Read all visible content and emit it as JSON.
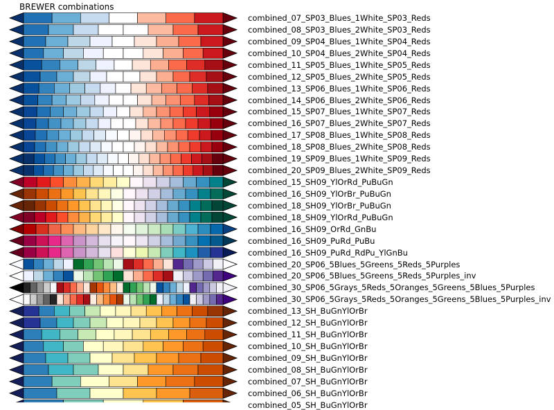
{
  "title": "BREWER combinations",
  "colorbars": [
    {
      "name": "combined_07_SP03_Blues_1White_SP03_Reds",
      "under": "#08306b",
      "over": "#67000d",
      "colors": [
        "#2171b5",
        "#6baed6",
        "#c6dbef",
        "#ffffff",
        "#fcbba1",
        "#fb6a4a",
        "#cb181d"
      ]
    },
    {
      "name": "combined_08_SP03_Blues_2White_SP03_Reds",
      "under": "#08306b",
      "over": "#67000d",
      "colors": [
        "#2171b5",
        "#6baed6",
        "#c6dbef",
        "#ffffff",
        "#ffffff",
        "#fcbba1",
        "#fb6a4a",
        "#cb181d"
      ]
    },
    {
      "name": "combined_09_SP04_Blues_1White_SP04_Reds",
      "under": "#08306b",
      "over": "#67000d",
      "colors": [
        "#2171b5",
        "#6baed6",
        "#bdd7e7",
        "#eff3ff",
        "#ffffff",
        "#fee5d9",
        "#fcae91",
        "#fb6a4a",
        "#cb181d"
      ]
    },
    {
      "name": "combined_10_SP04_Blues_2White_SP04_Reds",
      "under": "#08306b",
      "over": "#67000d",
      "colors": [
        "#2171b5",
        "#6baed6",
        "#bdd7e7",
        "#eff3ff",
        "#ffffff",
        "#ffffff",
        "#fee5d9",
        "#fcae91",
        "#fb6a4a",
        "#cb181d"
      ]
    },
    {
      "name": "combined_11_SP05_Blues_1White_SP05_Reds",
      "under": "#08306b",
      "over": "#67000d",
      "colors": [
        "#08519c",
        "#3182bd",
        "#6baed6",
        "#bdd7e7",
        "#eff3ff",
        "#ffffff",
        "#fee5d9",
        "#fcae91",
        "#fb6a4a",
        "#de2d26",
        "#a50f15"
      ]
    },
    {
      "name": "combined_12_SP05_Blues_2White_SP05_Reds",
      "under": "#08306b",
      "over": "#67000d",
      "colors": [
        "#08519c",
        "#3182bd",
        "#6baed6",
        "#bdd7e7",
        "#eff3ff",
        "#ffffff",
        "#ffffff",
        "#fee5d9",
        "#fcae91",
        "#fb6a4a",
        "#de2d26",
        "#a50f15"
      ]
    },
    {
      "name": "combined_13_SP06_Blues_1White_SP06_Reds",
      "under": "#08306b",
      "over": "#67000d",
      "colors": [
        "#08519c",
        "#3182bd",
        "#6baed6",
        "#9ecae1",
        "#c6dbef",
        "#eff3ff",
        "#ffffff",
        "#fee5d9",
        "#fcbba1",
        "#fc9272",
        "#fb6a4a",
        "#de2d26",
        "#a50f15"
      ]
    },
    {
      "name": "combined_14_SP06_Blues_2White_SP06_Reds",
      "under": "#08306b",
      "over": "#67000d",
      "colors": [
        "#08519c",
        "#3182bd",
        "#6baed6",
        "#9ecae1",
        "#c6dbef",
        "#eff3ff",
        "#ffffff",
        "#ffffff",
        "#fee5d9",
        "#fcbba1",
        "#fc9272",
        "#fb6a4a",
        "#de2d26",
        "#a50f15"
      ]
    },
    {
      "name": "combined_15_SP07_Blues_1White_SP07_Reds",
      "under": "#08306b",
      "over": "#67000d",
      "colors": [
        "#084594",
        "#2171b5",
        "#4292c6",
        "#6baed6",
        "#9ecae1",
        "#c6dbef",
        "#eff3ff",
        "#ffffff",
        "#fee5d9",
        "#fcbba1",
        "#fc9272",
        "#fb6a4a",
        "#ef3b2c",
        "#cb181d",
        "#99000d"
      ]
    },
    {
      "name": "combined_16_SP07_Blues_2White_SP07_Reds",
      "under": "#08306b",
      "over": "#67000d",
      "colors": [
        "#084594",
        "#2171b5",
        "#4292c6",
        "#6baed6",
        "#9ecae1",
        "#c6dbef",
        "#eff3ff",
        "#ffffff",
        "#ffffff",
        "#fee5d9",
        "#fcbba1",
        "#fc9272",
        "#fb6a4a",
        "#ef3b2c",
        "#cb181d",
        "#99000d"
      ]
    },
    {
      "name": "combined_17_SP08_Blues_1White_SP08_Reds",
      "under": "#08306b",
      "over": "#67000d",
      "colors": [
        "#084594",
        "#2171b5",
        "#4292c6",
        "#6baed6",
        "#9ecae1",
        "#c6dbef",
        "#deebf7",
        "#f7fbff",
        "#ffffff",
        "#fff5f0",
        "#fee0d2",
        "#fcbba1",
        "#fc9272",
        "#fb6a4a",
        "#ef3b2c",
        "#cb181d",
        "#99000d"
      ]
    },
    {
      "name": "combined_18_SP08_Blues_2White_SP08_Reds",
      "under": "#08306b",
      "over": "#67000d",
      "colors": [
        "#084594",
        "#2171b5",
        "#4292c6",
        "#6baed6",
        "#9ecae1",
        "#c6dbef",
        "#deebf7",
        "#f7fbff",
        "#ffffff",
        "#ffffff",
        "#fff5f0",
        "#fee0d2",
        "#fcbba1",
        "#fc9272",
        "#fb6a4a",
        "#ef3b2c",
        "#cb181d",
        "#99000d"
      ]
    },
    {
      "name": "combined_19_SP09_Blues_1White_SP09_Reds",
      "under": "#08306b",
      "over": "#67000d",
      "colors": [
        "#08306b",
        "#08519c",
        "#2171b5",
        "#4292c6",
        "#6baed6",
        "#9ecae1",
        "#c6dbef",
        "#deebf7",
        "#f7fbff",
        "#ffffff",
        "#fff5f0",
        "#fee0d2",
        "#fcbba1",
        "#fc9272",
        "#fb6a4a",
        "#ef3b2c",
        "#cb181d",
        "#a50f15",
        "#67000d"
      ]
    },
    {
      "name": "combined_20_SP09_Blues_2White_SP09_Reds",
      "under": "#08306b",
      "over": "#67000d",
      "colors": [
        "#08306b",
        "#08519c",
        "#2171b5",
        "#4292c6",
        "#6baed6",
        "#9ecae1",
        "#c6dbef",
        "#deebf7",
        "#f7fbff",
        "#ffffff",
        "#ffffff",
        "#fff5f0",
        "#fee0d2",
        "#fcbba1",
        "#fc9272",
        "#fb6a4a",
        "#ef3b2c",
        "#cb181d",
        "#a50f15",
        "#67000d"
      ]
    },
    {
      "name": "combined_15_SH09_YlOrRd_PuBuGn",
      "under": "#800026",
      "over": "#014636",
      "colors": [
        "#bd0026",
        "#e31a1c",
        "#fc4e2a",
        "#fd8d3c",
        "#feb24c",
        "#fed976",
        "#ffeda0",
        "#ffffcc",
        "#fff7fb",
        "#ece2f0",
        "#d0d1e6",
        "#a6bddb",
        "#67a9cf",
        "#3690c0",
        "#02818a"
      ]
    },
    {
      "name": "combined_16_SH09_YlOrBr_PuBuGn",
      "under": "#662506",
      "over": "#014636",
      "colors": [
        "#993404",
        "#cc4c02",
        "#ec7014",
        "#fe9929",
        "#fec44f",
        "#fee391",
        "#fff7bc",
        "#ffffe5",
        "#fff7fb",
        "#ece2f0",
        "#d0d1e6",
        "#a6bddb",
        "#67a9cf",
        "#3690c0",
        "#02818a",
        "#016c59"
      ]
    },
    {
      "name": "combined_18_SH09_YlOrBr_PuBuGn",
      "under": "#662506",
      "over": "#014636",
      "colors": [
        "#662506",
        "#993404",
        "#cc4c02",
        "#ec7014",
        "#fe9929",
        "#fec44f",
        "#fee391",
        "#fff7bc",
        "#ffffe5",
        "#fff7fb",
        "#ece2f0",
        "#d0d1e6",
        "#a6bddb",
        "#67a9cf",
        "#3690c0",
        "#02818a",
        "#016c59",
        "#014636"
      ]
    },
    {
      "name": "combined_18_SH09_YlOrRd_PuBuGn",
      "under": "#800026",
      "over": "#014636",
      "colors": [
        "#800026",
        "#bd0026",
        "#e31a1c",
        "#fc4e2a",
        "#fd8d3c",
        "#feb24c",
        "#fed976",
        "#ffeda0",
        "#ffffcc",
        "#fff7fb",
        "#ece2f0",
        "#d0d1e6",
        "#a6bddb",
        "#67a9cf",
        "#3690c0",
        "#02818a",
        "#016c59",
        "#014636"
      ]
    },
    {
      "name": "combined_16_SH09_OrRd_GnBu",
      "under": "#7f0000",
      "over": "#084081",
      "colors": [
        "#b30000",
        "#d7301f",
        "#ef6548",
        "#fc8d59",
        "#fdbb84",
        "#fdd49e",
        "#fee8c8",
        "#fff7ec",
        "#f7fcf0",
        "#e0f3db",
        "#ccebc5",
        "#a8ddb5",
        "#7bccc4",
        "#4eb3d3",
        "#2b8cbe",
        "#0868ac"
      ]
    },
    {
      "name": "combined_16_SH09_PuRd_PuBu",
      "under": "#67001f",
      "over": "#023858",
      "colors": [
        "#980043",
        "#ce1256",
        "#e7298a",
        "#df65b0",
        "#c994c7",
        "#d4b9da",
        "#e7e1ef",
        "#f7f4f9",
        "#fff7fb",
        "#ece7f2",
        "#d0d1e6",
        "#a6bddb",
        "#74a9cf",
        "#3690c0",
        "#0570b0",
        "#045a8d"
      ]
    },
    {
      "name": "combined_16_SH09_PuRd_RdPu_YlGnBu",
      "under": "#67001f",
      "over": "#081d58",
      "colors": [
        "#980043",
        "#ce1256",
        "#e7298a",
        "#df65b0",
        "#c994c7",
        "#d4b9da",
        "#e7e1ef",
        "#fde0dd",
        "#ffffd9",
        "#edf8b1",
        "#c7e9b4",
        "#7fcdbb",
        "#41b6c4",
        "#1d91c0",
        "#225ea8",
        "#253494"
      ]
    },
    {
      "name": "combined_20_SP06_5Blues_5Greens_5Reds_5Purples",
      "under": "#f7fbff",
      "over": "#ffffff",
      "colors": [
        "#08519c",
        "#3182bd",
        "#6baed6",
        "#bdd7e7",
        "#eff3ff",
        "#006d2c",
        "#31a354",
        "#74c476",
        "#bae4b3",
        "#edf8e9",
        "#a50f15",
        "#de2d26",
        "#fb6a4a",
        "#fcae91",
        "#fee5d9",
        "#54278f",
        "#756bb1",
        "#9e9ac8",
        "#cbc9e2",
        "#f2f0f7"
      ]
    },
    {
      "name": "combined_20_SP06_5Blues_5Greens_5Reds_5Purples_inv",
      "under": "#ffffff",
      "over": "#3f007d",
      "colors": [
        "#eff3ff",
        "#bdd7e7",
        "#6baed6",
        "#3182bd",
        "#08519c",
        "#edf8e9",
        "#bae4b3",
        "#74c476",
        "#31a354",
        "#006d2c",
        "#fee5d9",
        "#fcae91",
        "#fb6a4a",
        "#de2d26",
        "#a50f15",
        "#f2f0f7",
        "#cbc9e2",
        "#9e9ac8",
        "#756bb1",
        "#54278f"
      ]
    },
    {
      "name": "combined_30_SP06_5Grays_5Reds_5Oranges_5Greens_5Blues_5Purples",
      "under": "#000000",
      "over": "#f2f0f7",
      "colors": [
        "#252525",
        "#636363",
        "#969696",
        "#cccccc",
        "#f7f7f7",
        "#a50f15",
        "#de2d26",
        "#fb6a4a",
        "#fcae91",
        "#fee5d9",
        "#a63603",
        "#e6550d",
        "#fd8d3c",
        "#fdbe85",
        "#feedde",
        "#006d2c",
        "#31a354",
        "#74c476",
        "#bae4b3",
        "#edf8e9",
        "#08519c",
        "#3182bd",
        "#6baed6",
        "#bdd7e7",
        "#eff3ff",
        "#54278f",
        "#756bb1",
        "#9e9ac8",
        "#cbc9e2",
        "#f2f0f7"
      ]
    },
    {
      "name": "combined_30_SP06_5Grays_5Reds_5Oranges_5Greens_5Blues_5Purples_inv",
      "under": "#ffffff",
      "over": "#3f007d",
      "colors": [
        "#f7f7f7",
        "#cccccc",
        "#969696",
        "#636363",
        "#252525",
        "#fee5d9",
        "#fcae91",
        "#fb6a4a",
        "#de2d26",
        "#a50f15",
        "#feedde",
        "#fdbe85",
        "#fd8d3c",
        "#e6550d",
        "#a63603",
        "#edf8e9",
        "#bae4b3",
        "#74c476",
        "#31a354",
        "#006d2c",
        "#eff3ff",
        "#bdd7e7",
        "#6baed6",
        "#3182bd",
        "#08519c",
        "#f2f0f7",
        "#cbc9e2",
        "#9e9ac8",
        "#756bb1",
        "#54278f"
      ]
    },
    {
      "name": "combined_13_SH_BuGnYlOrBr",
      "under": "#141e58",
      "over": "#662506",
      "colors": [
        "#253494",
        "#2c7fb8",
        "#41b6c4",
        "#7fcdbb",
        "#c7e9b4",
        "#ffffcc",
        "#fff7bc",
        "#fee391",
        "#fec44f",
        "#fe9929",
        "#ec7014",
        "#cc4c02",
        "#993404"
      ]
    },
    {
      "name": "combined_12_SH_BuGnYlOrBr",
      "under": "#141e58",
      "over": "#662506",
      "colors": [
        "#253494",
        "#2c7fb8",
        "#41b6c4",
        "#7fcdbb",
        "#c7e9b4",
        "#ffffcc",
        "#fff7bc",
        "#fee391",
        "#fec44f",
        "#fe9929",
        "#ec7014",
        "#cc4c02"
      ]
    },
    {
      "name": "combined_11_SH_BuGnYlOrBr",
      "under": "#141e58",
      "over": "#662506",
      "colors": [
        "#2c7fb8",
        "#41b6c4",
        "#7fcdbb",
        "#c7e9b4",
        "#ffffcc",
        "#fff7bc",
        "#fee391",
        "#fec44f",
        "#fe9929",
        "#ec7014",
        "#cc4c02"
      ]
    },
    {
      "name": "combined_10_SH_BuGnYlOrBr",
      "under": "#141e58",
      "over": "#662506",
      "colors": [
        "#2c7fb8",
        "#41b6c4",
        "#7fcdbb",
        "#ffffcc",
        "#fff7bc",
        "#fee391",
        "#fec44f",
        "#fe9929",
        "#ec7014",
        "#cc4c02"
      ]
    },
    {
      "name": "combined_09_SH_BuGnYlOrBr",
      "under": "#141e58",
      "over": "#662506",
      "colors": [
        "#2c7fb8",
        "#41b6c4",
        "#7fcdbb",
        "#ffffcc",
        "#fee391",
        "#fec44f",
        "#fe9929",
        "#ec7014",
        "#cc4c02"
      ]
    },
    {
      "name": "combined_08_SH_BuGnYlOrBr",
      "under": "#141e58",
      "over": "#662506",
      "colors": [
        "#2c7fb8",
        "#41b6c4",
        "#7fcdbb",
        "#ffffcc",
        "#fee391",
        "#fe9929",
        "#ec7014",
        "#cc4c02"
      ]
    },
    {
      "name": "combined_07_SH_BuGnYlOrBr",
      "under": "#141e58",
      "over": "#662506",
      "colors": [
        "#2c7fb8",
        "#7fcdbb",
        "#ffffcc",
        "#fee391",
        "#fe9929",
        "#ec7014",
        "#cc4c02"
      ]
    },
    {
      "name": "combined_06_SH_BuGnYlOrBr",
      "under": "#141e58",
      "over": "#662506",
      "colors": [
        "#2c7fb8",
        "#7fcdbb",
        "#ffffcc",
        "#fec44f",
        "#fe9929",
        "#d95f0e"
      ]
    },
    {
      "name": "combined_05_SH_BuGnYlOrBr",
      "under": "#141e58",
      "over": "#662506",
      "colors": [
        "#2c7fb8",
        "#7fcdbb",
        "#ffffcc",
        "#fec44f",
        "#d95f0e"
      ]
    }
  ]
}
